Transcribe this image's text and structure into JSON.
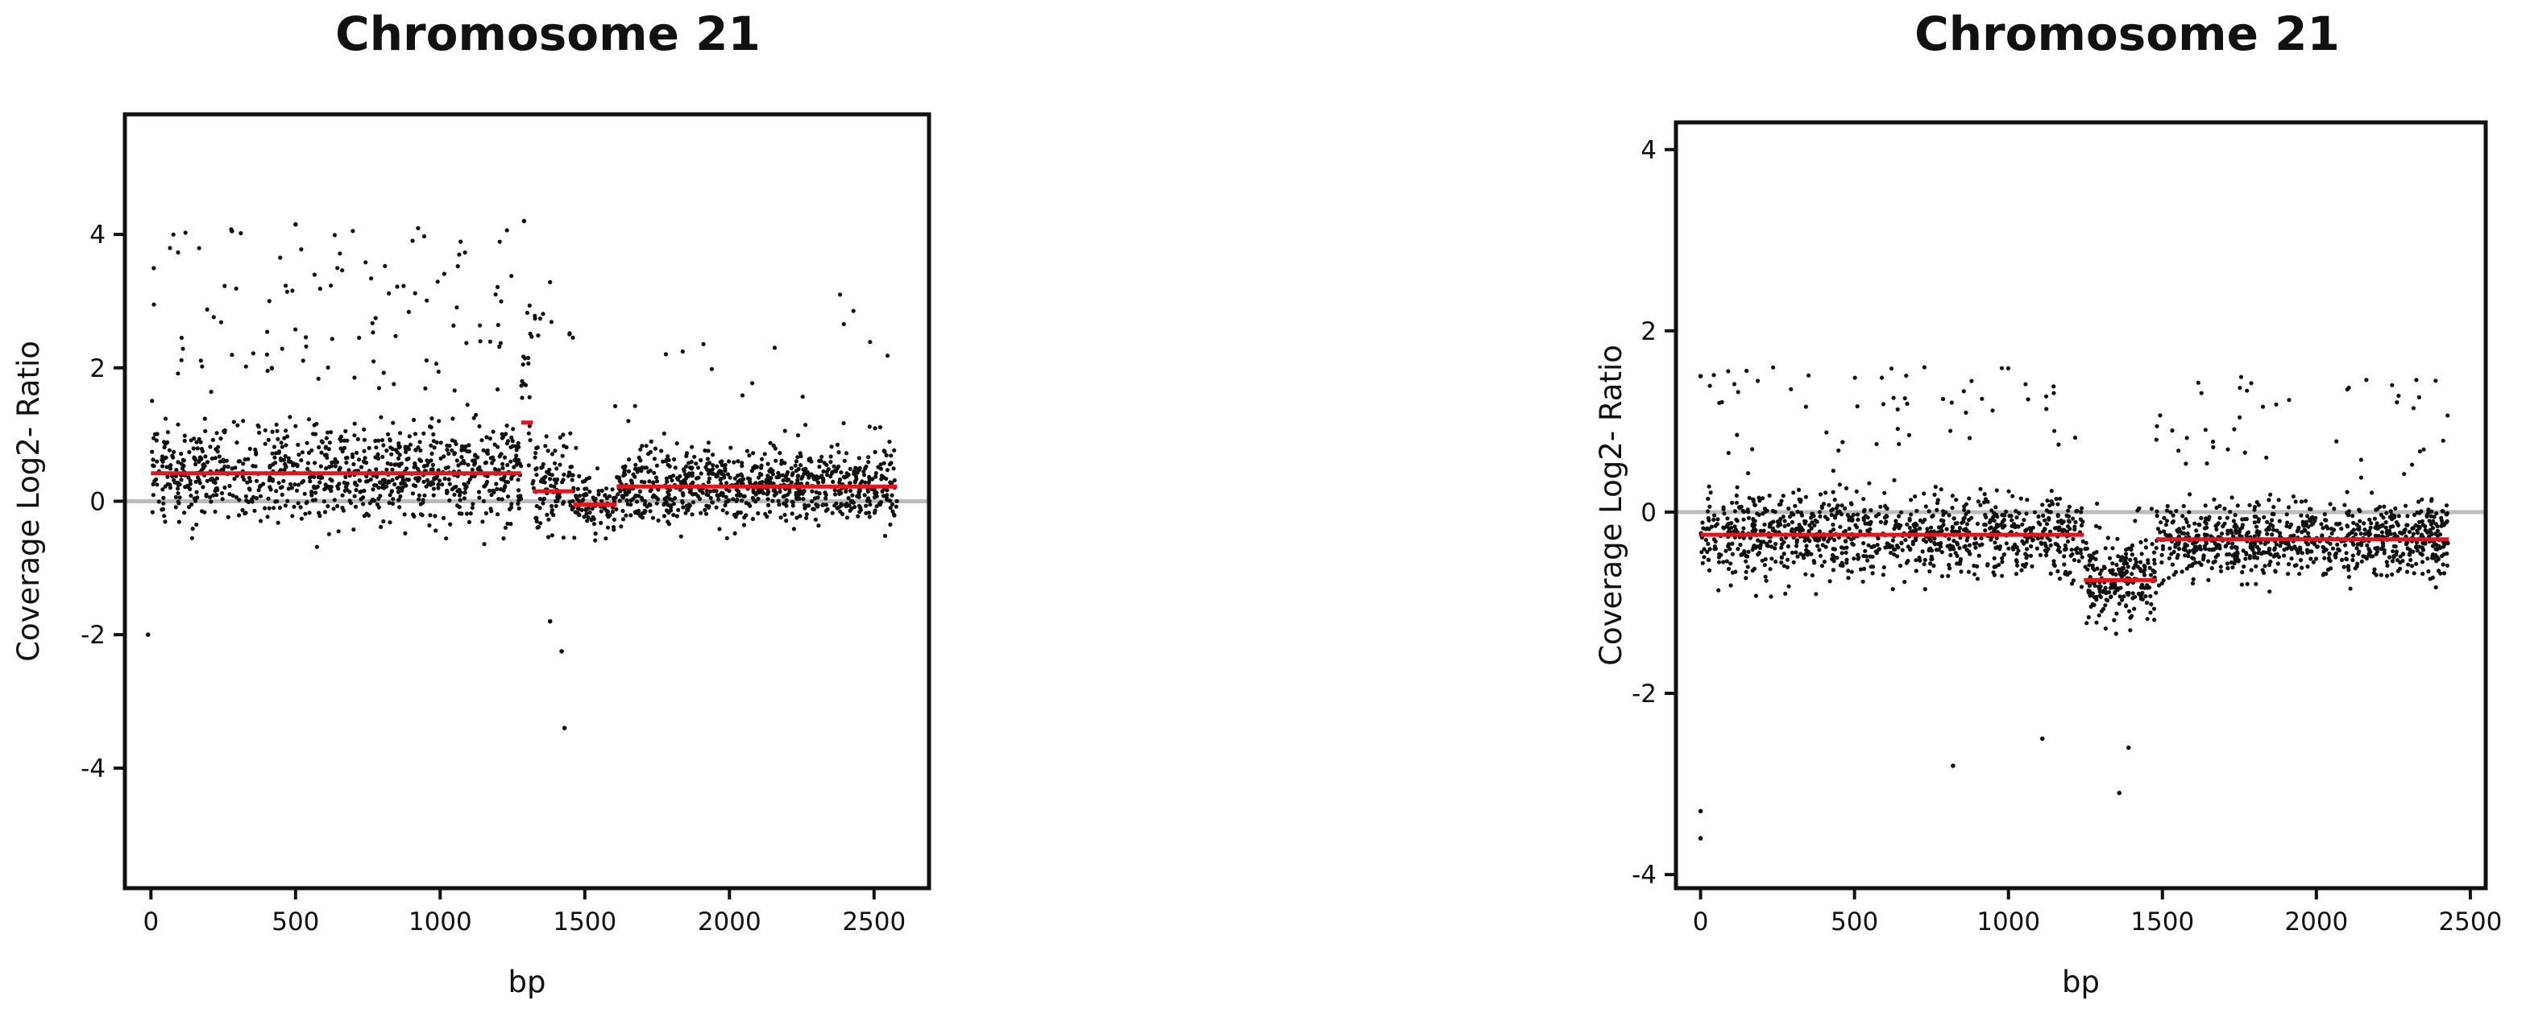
{
  "chart_data": [
    {
      "type": "scatter",
      "title": "Chromosome 21",
      "xlabel": "bp",
      "ylabel": "Coverage Log2- Ratio",
      "xlim": [
        -90,
        2690
      ],
      "ylim": [
        -5.8,
        5.8
      ],
      "xticks": [
        0,
        500,
        1000,
        1500,
        2000,
        2500
      ],
      "yticks": [
        -4,
        -2,
        0,
        2,
        4
      ],
      "x_tick_labels": [
        "0",
        "500",
        "1000",
        "1500",
        "2000",
        "2500"
      ],
      "y_tick_labels": [
        "-4",
        "-2",
        "0",
        "2",
        "4"
      ],
      "reference_line": 0,
      "grid": false,
      "point_color": "#111111",
      "segment_color": "#e8141c",
      "reference_color": "#bbbbbb",
      "segments": [
        {
          "x0": 0,
          "x1": 1280,
          "y": 0.42
        },
        {
          "x0": 1280,
          "x1": 1320,
          "y": 1.18
        },
        {
          "x0": 1320,
          "x1": 1460,
          "y": 0.15
        },
        {
          "x0": 1460,
          "x1": 1610,
          "y": -0.05
        },
        {
          "x0": 1610,
          "x1": 2580,
          "y": 0.22
        }
      ],
      "scatter_regions": [
        {
          "x0": 0,
          "x1": 1280,
          "n": 1000,
          "center": 0.42,
          "spread": 0.75,
          "outlier_rate": 0.1,
          "outlier_range": [
            1.5,
            4.1
          ]
        },
        {
          "x0": 1280,
          "x1": 1320,
          "n": 20,
          "center": 1.2,
          "spread": 1.2,
          "outlier_rate": 0.1,
          "outlier_range": [
            2.0,
            4.2
          ]
        },
        {
          "x0": 1320,
          "x1": 1460,
          "n": 110,
          "center": 0.15,
          "spread": 0.7,
          "outlier_rate": 0.1,
          "outlier_range": [
            2.0,
            3.7
          ]
        },
        {
          "x0": 1460,
          "x1": 1610,
          "n": 100,
          "center": -0.05,
          "spread": 0.45,
          "outlier_rate": 0.04,
          "outlier_range": [
            0.5,
            1.5
          ]
        },
        {
          "x0": 1610,
          "x1": 2580,
          "n": 800,
          "center": 0.22,
          "spread": 0.55,
          "outlier_rate": 0.03,
          "outlier_range": [
            1.0,
            3.1
          ]
        }
      ],
      "extra_points": [
        {
          "x": -10,
          "y": -2.0
        },
        {
          "x": 1430,
          "y": -3.4
        },
        {
          "x": 1420,
          "y": -2.25
        },
        {
          "x": 1380,
          "y": -1.8
        },
        {
          "x": 1290,
          "y": 4.2
        },
        {
          "x": 280,
          "y": 4.05
        },
        {
          "x": 500,
          "y": 4.15
        }
      ]
    },
    {
      "type": "scatter",
      "title": "Chromosome 21",
      "xlabel": "bp",
      "ylabel": "Coverage Log2- Ratio",
      "xlim": [
        -80,
        2550
      ],
      "ylim": [
        -4.15,
        4.3
      ],
      "xticks": [
        0,
        500,
        1000,
        1500,
        2000,
        2500
      ],
      "yticks": [
        -4,
        -2,
        0,
        2,
        4
      ],
      "x_tick_labels": [
        "0",
        "500",
        "1000",
        "1500",
        "2000",
        "2500"
      ],
      "y_tick_labels": [
        "-4",
        "-2",
        "0",
        "2",
        "4"
      ],
      "reference_line": 0,
      "grid": false,
      "point_color": "#111111",
      "segment_color": "#e8141c",
      "reference_color": "#bbbbbb",
      "segments": [
        {
          "x0": 0,
          "x1": 1245,
          "y": -0.25
        },
        {
          "x0": 1245,
          "x1": 1480,
          "y": -0.75
        },
        {
          "x0": 1480,
          "x1": 2430,
          "y": -0.3
        }
      ],
      "scatter_regions": [
        {
          "x0": 0,
          "x1": 1245,
          "n": 1000,
          "center": -0.25,
          "spread": 0.45,
          "outlier_rate": 0.06,
          "outlier_range": [
            0.6,
            1.65
          ]
        },
        {
          "x0": 1245,
          "x1": 1480,
          "n": 230,
          "center": -0.75,
          "spread": 0.45,
          "outlier_rate": 0.03,
          "outlier_range": [
            -0.2,
            0.2
          ]
        },
        {
          "x0": 1480,
          "x1": 2430,
          "n": 850,
          "center": -0.3,
          "spread": 0.4,
          "outlier_rate": 0.04,
          "outlier_range": [
            0.5,
            1.5
          ]
        }
      ],
      "extra_points": [
        {
          "x": 0,
          "y": -3.3
        },
        {
          "x": 0,
          "y": -3.6
        },
        {
          "x": 1360,
          "y": -3.1
        },
        {
          "x": 1390,
          "y": -2.6
        },
        {
          "x": 820,
          "y": -2.8
        },
        {
          "x": 1110,
          "y": -2.5
        },
        {
          "x": 0,
          "y": 1.5
        }
      ]
    }
  ]
}
